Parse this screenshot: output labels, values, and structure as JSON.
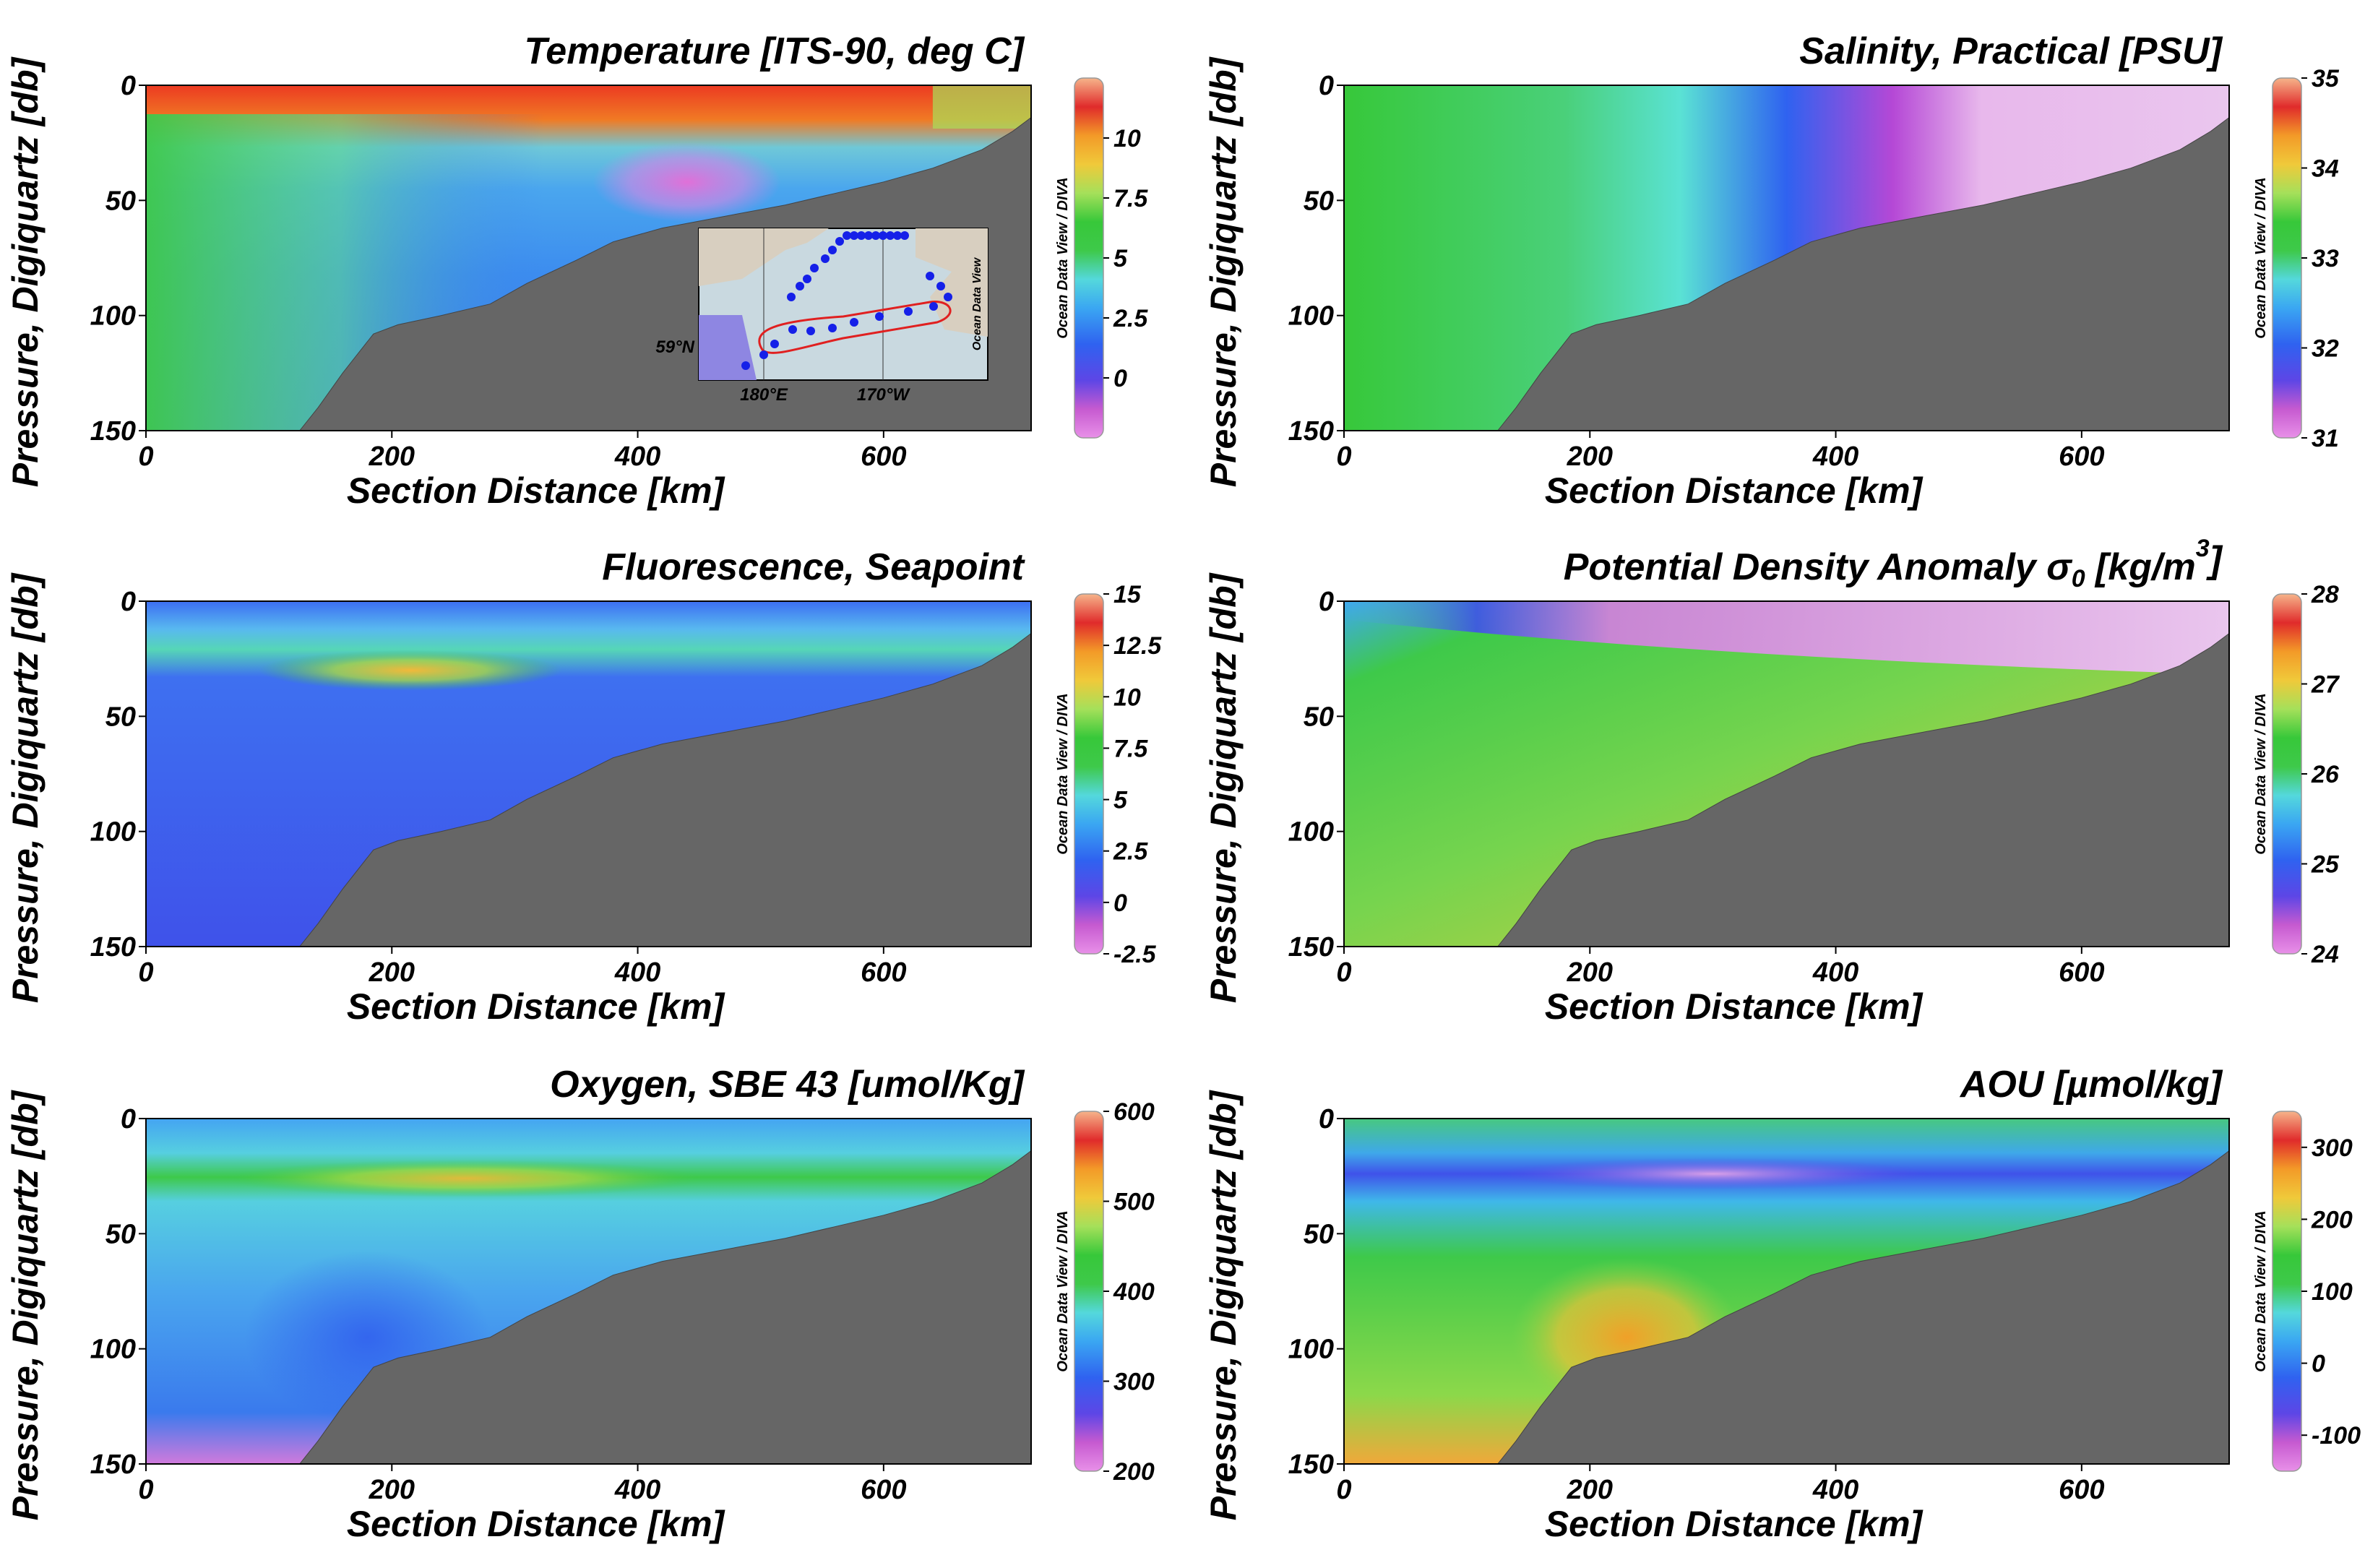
{
  "chart_data": [
    {
      "type": "heatmap",
      "title": "Temperature [ITS-90, deg C]",
      "xlabel": "Section Distance [km]",
      "ylabel": "Pressure, Digiquartz [db]",
      "xlim": [
        0,
        720
      ],
      "ylim": [
        150,
        0
      ],
      "x_ticks": [
        "0",
        "200",
        "400",
        "600"
      ],
      "y_ticks": [
        "0",
        "50",
        "100",
        "150"
      ],
      "colorbar": {
        "range": [
          -2.5,
          12.5
        ],
        "ticks": [
          "0",
          "2.5",
          "5",
          "7.5",
          "10"
        ],
        "watermark": "Ocean Data View / DIVA"
      },
      "inset_map": {
        "lat_label": "59°N",
        "lon_labels": [
          "180°E",
          "170°W"
        ],
        "watermark": "Ocean Data View"
      }
    },
    {
      "type": "heatmap",
      "title": "Salinity, Practical [PSU]",
      "xlabel": "Section Distance [km]",
      "ylabel": "Pressure, Digiquartz [db]",
      "xlim": [
        0,
        720
      ],
      "ylim": [
        150,
        0
      ],
      "x_ticks": [
        "0",
        "200",
        "400",
        "600"
      ],
      "y_ticks": [
        "0",
        "50",
        "100",
        "150"
      ],
      "colorbar": {
        "range": [
          31,
          35
        ],
        "ticks": [
          "31",
          "32",
          "33",
          "34",
          "35"
        ],
        "watermark": "Ocean Data View / DIVA"
      }
    },
    {
      "type": "heatmap",
      "title": "Fluorescence, Seapoint",
      "xlabel": "Section Distance [km]",
      "ylabel": "Pressure, Digiquartz [db]",
      "xlim": [
        0,
        720
      ],
      "ylim": [
        150,
        0
      ],
      "x_ticks": [
        "0",
        "200",
        "400",
        "600"
      ],
      "y_ticks": [
        "0",
        "50",
        "100",
        "150"
      ],
      "colorbar": {
        "range": [
          -2.5,
          15
        ],
        "ticks": [
          "-2.5",
          "0",
          "2.5",
          "5",
          "7.5",
          "10",
          "12.5",
          "15"
        ],
        "watermark": "Ocean Data View / DIVA"
      }
    },
    {
      "type": "heatmap",
      "title_main": "Potential Density Anomaly σ",
      "title_sub": "0",
      "title_unit": " [kg/m",
      "title_sup": "3",
      "title_end": "]",
      "xlabel": "Section Distance [km]",
      "ylabel": "Pressure, Digiquartz [db]",
      "xlim": [
        0,
        720
      ],
      "ylim": [
        150,
        0
      ],
      "x_ticks": [
        "0",
        "200",
        "400",
        "600"
      ],
      "y_ticks": [
        "0",
        "50",
        "100",
        "150"
      ],
      "colorbar": {
        "range": [
          24,
          28
        ],
        "ticks": [
          "24",
          "25",
          "26",
          "27",
          "28"
        ],
        "watermark": "Ocean Data View / DIVA"
      }
    },
    {
      "type": "heatmap",
      "title": "Oxygen, SBE 43 [umol/Kg]",
      "xlabel": "Section Distance [km]",
      "ylabel": "Pressure, Digiquartz [db]",
      "xlim": [
        0,
        720
      ],
      "ylim": [
        150,
        0
      ],
      "x_ticks": [
        "0",
        "200",
        "400",
        "600"
      ],
      "y_ticks": [
        "0",
        "50",
        "100",
        "150"
      ],
      "colorbar": {
        "range": [
          200,
          600
        ],
        "ticks": [
          "200",
          "300",
          "400",
          "500",
          "600"
        ],
        "watermark": "Ocean Data View / DIVA"
      }
    },
    {
      "type": "heatmap",
      "title": "AOU [µmol/kg]",
      "xlabel": "Section Distance [km]",
      "ylabel": "Pressure, Digiquartz [db]",
      "xlim": [
        0,
        720
      ],
      "ylim": [
        150,
        0
      ],
      "x_ticks": [
        "0",
        "200",
        "400",
        "600"
      ],
      "y_ticks": [
        "0",
        "50",
        "100",
        "150"
      ],
      "colorbar": {
        "range": [
          -150,
          350
        ],
        "ticks": [
          "-100",
          "0",
          "100",
          "200",
          "300"
        ],
        "watermark": "Ocean Data View / DIVA"
      }
    }
  ],
  "colors": {
    "bathymetry": "#666666",
    "colormap": [
      "#e27fe2",
      "#c65ad0",
      "#5d46e6",
      "#2f62f0",
      "#3aa6f2",
      "#54d8dc",
      "#3ec94a",
      "#37c83a",
      "#a5e05a",
      "#f0c93a",
      "#f39a28",
      "#ec5a1e",
      "#e02b2b"
    ]
  }
}
